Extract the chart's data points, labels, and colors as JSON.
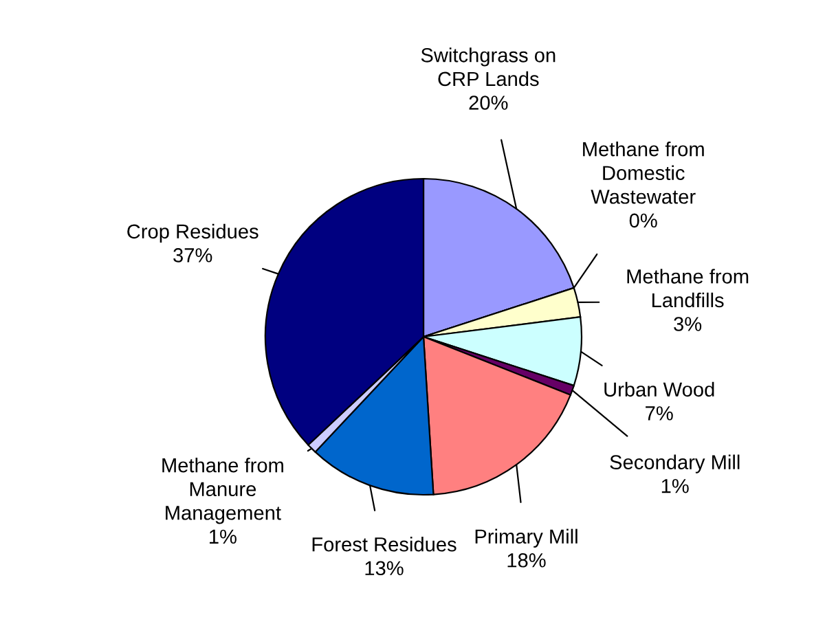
{
  "chart_data": {
    "type": "pie",
    "categories": [
      "Switchgrass on\nCRP Lands",
      "Methane from\nDomestic\nWastewater",
      "Methane from\nLandfills",
      "Urban Wood",
      "Secondary Mill",
      "Primary Mill",
      "Forest Residues",
      "Methane from\nManure\nManagement",
      "Crop Residues"
    ],
    "values": [
      20,
      0,
      3,
      7,
      1,
      18,
      13,
      1,
      37
    ],
    "colors": [
      "#9999ff",
      "#993366",
      "#ffffcc",
      "#ccffff",
      "#660066",
      "#ff8080",
      "#0066cc",
      "#ccccff",
      "#000080"
    ],
    "value_labels": [
      "20%",
      "0%",
      "3%",
      "7%",
      "1%",
      "18%",
      "13%",
      "1%",
      "37%"
    ]
  }
}
